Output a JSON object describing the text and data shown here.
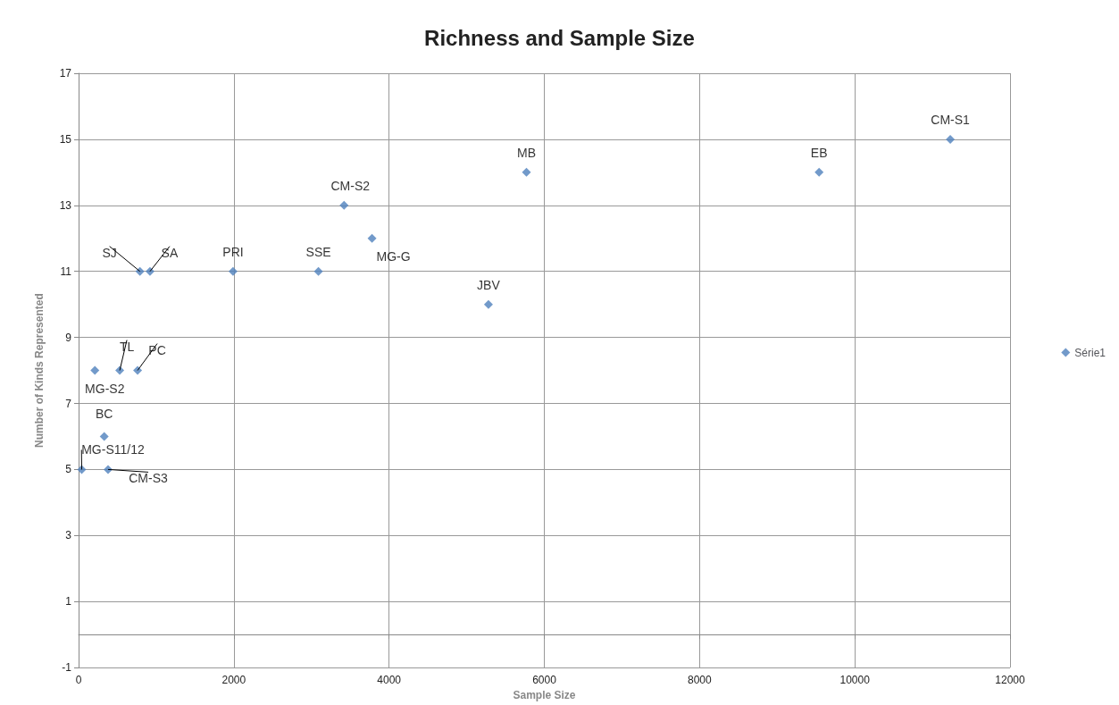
{
  "chart_data": {
    "type": "scatter",
    "title": "Richness and Sample Size",
    "xlabel": "Sample Size",
    "ylabel": "Number of Kinds Represented",
    "x": [
      40,
      210,
      330,
      380,
      530,
      760,
      790,
      920,
      1990,
      3090,
      3420,
      3780,
      5280,
      5770,
      9540,
      11230
    ],
    "series": [
      {
        "name": "Série1",
        "color": "#4f81bd",
        "values": [
          5,
          8,
          6,
          5,
          8,
          8,
          11,
          11,
          11,
          11,
          13,
          12,
          10,
          14,
          14,
          15
        ]
      }
    ],
    "annotations": [
      {
        "text": "MG-S11/12",
        "x": 40,
        "y": 5
      },
      {
        "text": "MG-S2",
        "x": 210,
        "y": 8
      },
      {
        "text": "BC",
        "x": 330,
        "y": 6
      },
      {
        "text": "CM-S3",
        "x": 380,
        "y": 5
      },
      {
        "text": "TL",
        "x": 530,
        "y": 8
      },
      {
        "text": "PC",
        "x": 760,
        "y": 8
      },
      {
        "text": "SJ",
        "x": 790,
        "y": 11
      },
      {
        "text": "SA",
        "x": 920,
        "y": 11
      },
      {
        "text": "PRI",
        "x": 1990,
        "y": 11
      },
      {
        "text": "SSE",
        "x": 3090,
        "y": 11
      },
      {
        "text": "CM-S2",
        "x": 3420,
        "y": 13
      },
      {
        "text": "MG-G",
        "x": 3780,
        "y": 12
      },
      {
        "text": "JBV",
        "x": 5280,
        "y": 10
      },
      {
        "text": "MB",
        "x": 5770,
        "y": 14
      },
      {
        "text": "EB",
        "x": 9540,
        "y": 14
      },
      {
        "text": "CM-S1",
        "x": 11230,
        "y": 15
      }
    ],
    "xlim": [
      0,
      12000
    ],
    "xticks": [
      0,
      2000,
      4000,
      6000,
      8000,
      10000,
      12000
    ],
    "ylim": [
      -1,
      17
    ],
    "yticks": [
      -1,
      1,
      3,
      5,
      7,
      9,
      11,
      13,
      15,
      17
    ],
    "grid": true,
    "legend": "right",
    "marker": "diamond"
  }
}
